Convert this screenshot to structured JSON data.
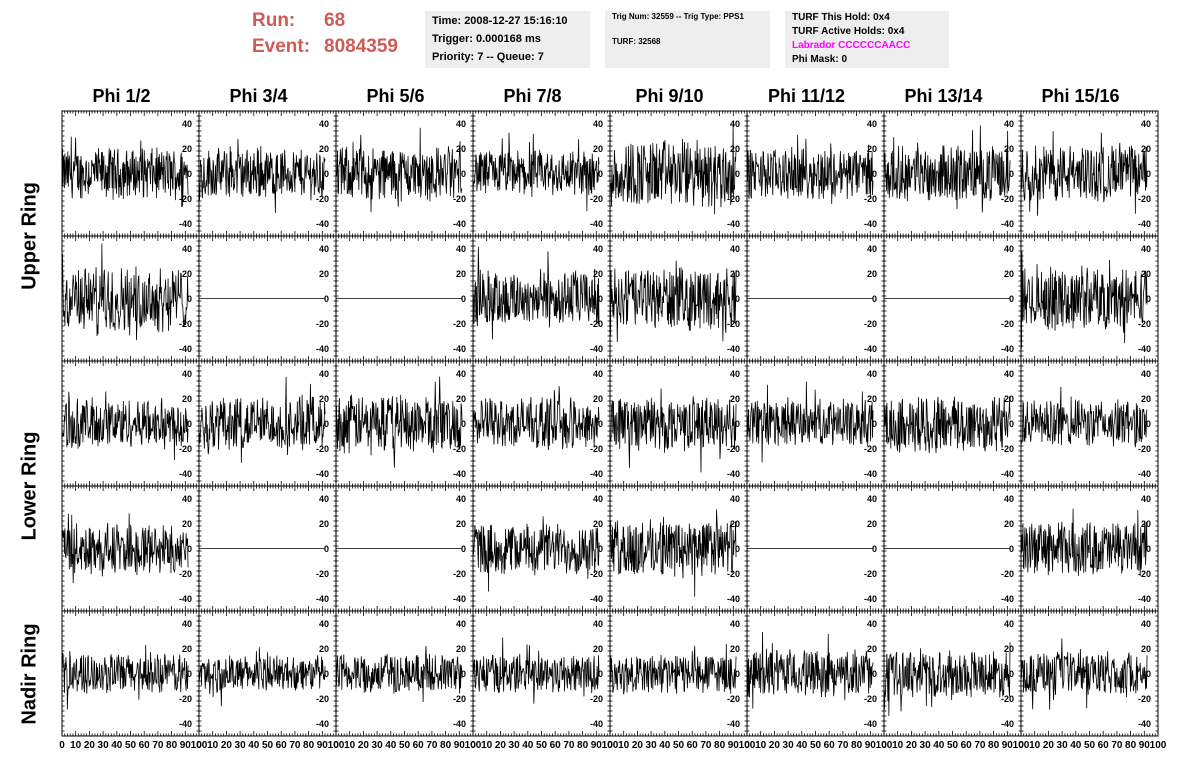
{
  "header": {
    "run_label": "Run:",
    "run_value": "68",
    "event_label": "Event:",
    "event_value": "8084359"
  },
  "info_panel": {
    "time": "Time: 2008-12-27 15:16:10",
    "trigger": "Trigger: 0.000168 ms",
    "priority": "Priority: 7 -- Queue: 7"
  },
  "trig_panel": {
    "trig_line": "Trig Num: 32559 -- Trig Type: PPS1",
    "turf_line": "TURF: 32568"
  },
  "turf_panel": {
    "this_hold": "TURF This Hold: 0x4",
    "active_holds": "TURF Active Holds: 0x4",
    "labrador": "Labrador CCCCCCAACC",
    "phi_mask": "Phi Mask: 0"
  },
  "columns": [
    "Phi 1/2",
    "Phi 3/4",
    "Phi 5/6",
    "Phi 7/8",
    "Phi 9/10",
    "Phi 11/12",
    "Phi 13/14",
    "Phi 15/16"
  ],
  "ring_labels": [
    "Upper Ring",
    "Lower Ring",
    "Nadir Ring"
  ],
  "chart_data": {
    "type": "line",
    "description_grid": "5 rows x 8 columns of waveform panels",
    "xlim": [
      0,
      100
    ],
    "ylim": [
      -50,
      50
    ],
    "x_ticks": [
      0,
      10,
      20,
      30,
      40,
      50,
      60,
      70,
      80,
      90,
      100
    ],
    "x_tick_labels": [
      "0",
      "10",
      "20",
      "30",
      "40",
      "50",
      "60",
      "70",
      "80",
      "90",
      "100"
    ],
    "y_ticks": [
      -40,
      -20,
      0,
      20,
      40
    ],
    "y_tick_labels": [
      "-40",
      "-20",
      "0",
      "20",
      "40"
    ],
    "samples_per_trace": 260,
    "x_end": 92,
    "rows": [
      {
        "ring": "Upper Ring",
        "amplitudes": [
          14,
          14,
          15,
          13,
          19,
          14,
          15,
          16
        ]
      },
      {
        "ring": "Upper Ring",
        "amplitudes": [
          18,
          0,
          0,
          16,
          17,
          0,
          0,
          17
        ]
      },
      {
        "ring": "Lower Ring",
        "amplitudes": [
          14,
          15,
          16,
          14,
          15,
          13,
          16,
          13
        ]
      },
      {
        "ring": "Lower Ring",
        "amplitudes": [
          14,
          0,
          0,
          14,
          16,
          0,
          0,
          15
        ]
      },
      {
        "ring": "Nadir Ring",
        "amplitudes": [
          11,
          10,
          11,
          11,
          11,
          13,
          13,
          12
        ]
      }
    ]
  },
  "colors": {
    "trace": "#000000",
    "header_red": "#d05a55",
    "labrador": "#ff00ff",
    "panel_bg": "#eeeeee"
  }
}
